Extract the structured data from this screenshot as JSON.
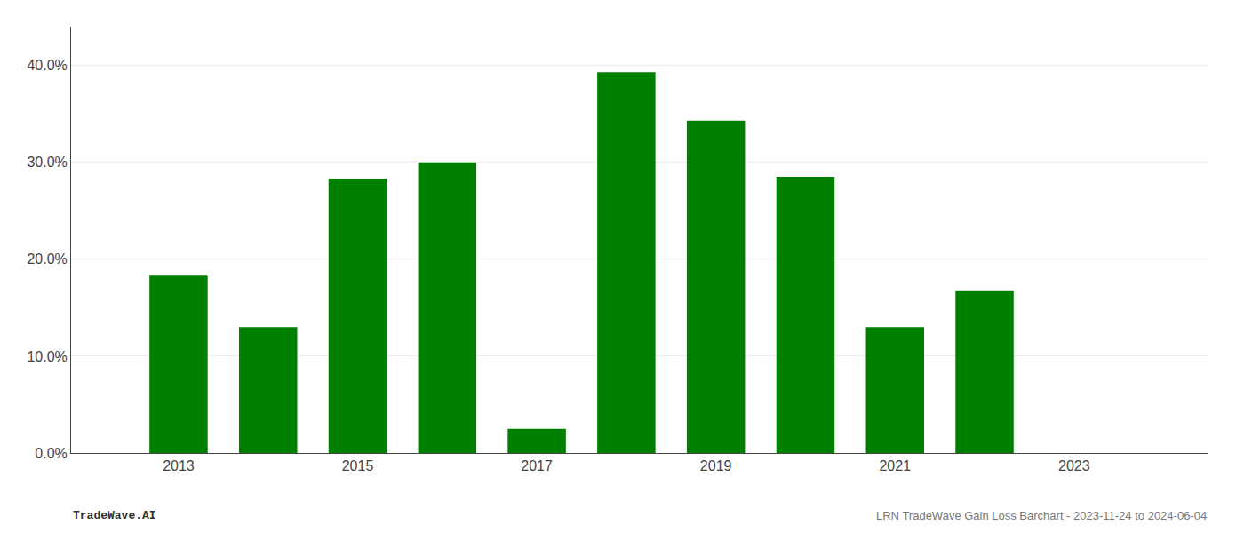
{
  "chart_data": {
    "type": "bar",
    "x": [
      2013,
      2014,
      2015,
      2016,
      2017,
      2018,
      2019,
      2020,
      2021,
      2022,
      2023
    ],
    "values": [
      0.183,
      0.13,
      0.283,
      0.3,
      0.025,
      0.393,
      0.343,
      0.285,
      0.13,
      0.167,
      0.0
    ],
    "color": "#008000",
    "xlim": [
      2011.8,
      2024.5
    ],
    "xticks": [
      2013,
      2015,
      2017,
      2019,
      2021,
      2023
    ],
    "ylim": [
      0,
      0.44
    ],
    "yticks": [
      {
        "value": 0.0,
        "label": "0.0%"
      },
      {
        "value": 0.1,
        "label": "10.0%"
      },
      {
        "value": 0.2,
        "label": "20.0%"
      },
      {
        "value": 0.3,
        "label": "30.0%"
      },
      {
        "value": 0.4,
        "label": "40.0%"
      }
    ],
    "grid": true,
    "annotations": [
      "TradeWave.AI",
      "LRN TradeWave Gain Loss Barchart - 2023-11-24 to 2024-06-04"
    ]
  }
}
